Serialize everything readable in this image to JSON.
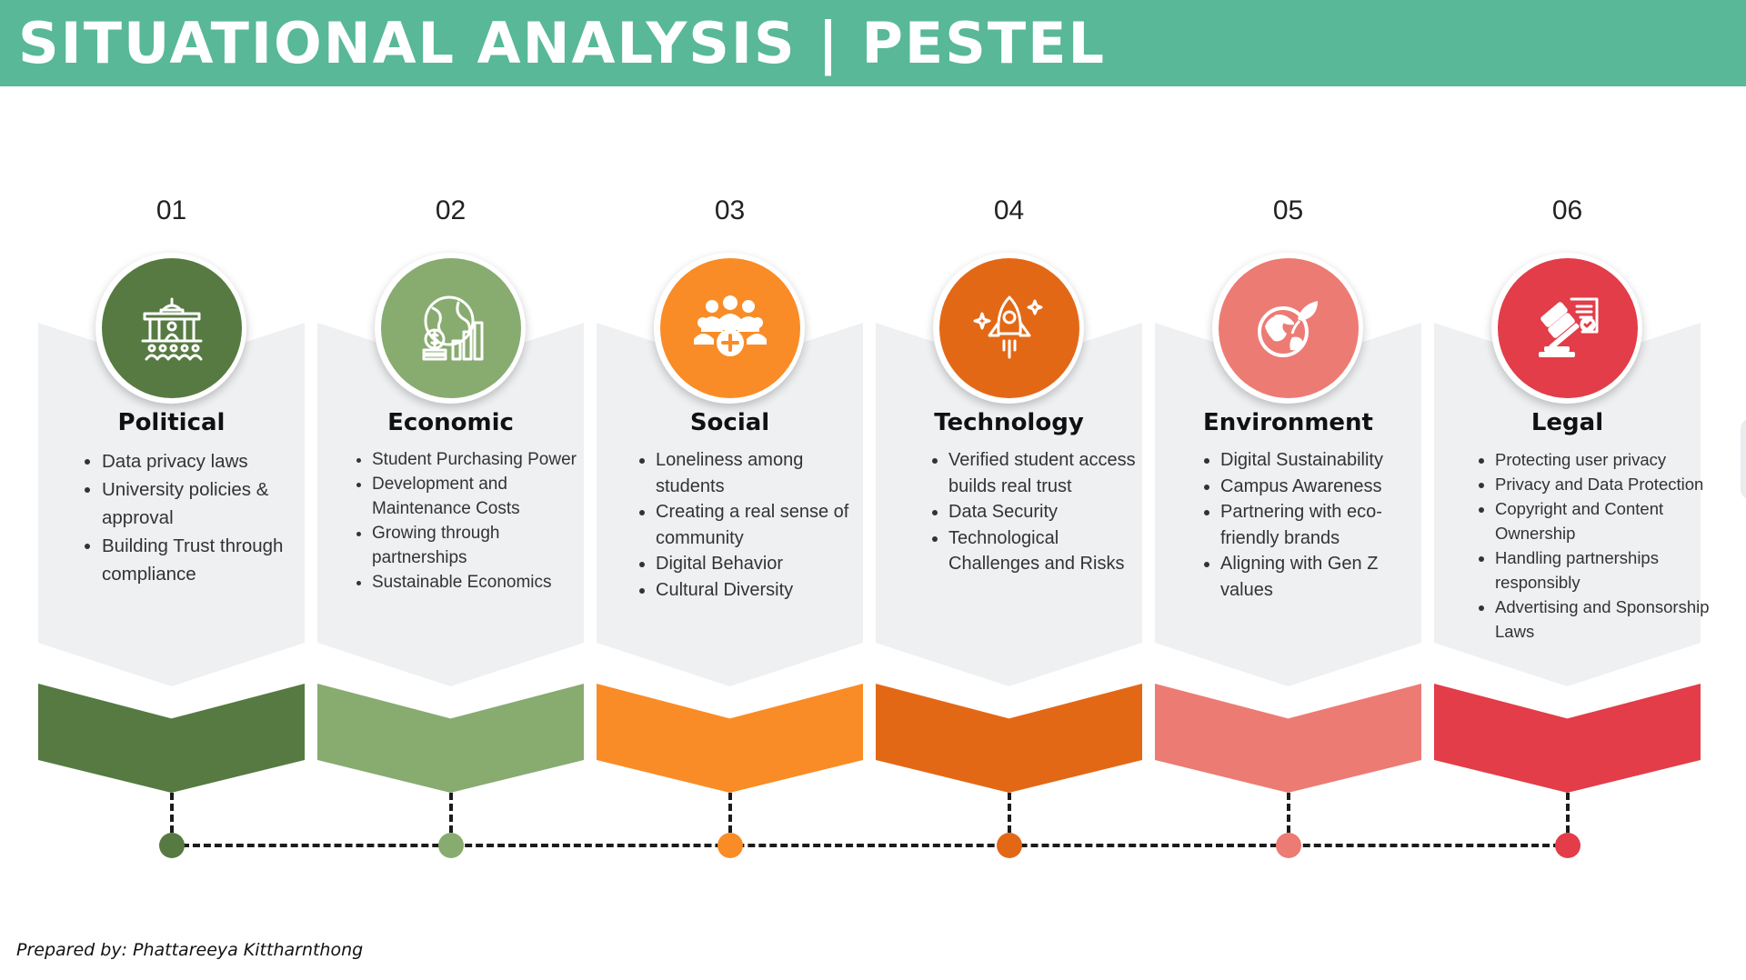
{
  "header": {
    "title": "SITUATIONAL ANALYSIS | PESTEL"
  },
  "footer": {
    "text": "Prepared by: Phattareeya Kittharnthong"
  },
  "items": [
    {
      "number": "01",
      "title": "Political",
      "color": "#567a41",
      "icon": "government-building-icon",
      "bullets": [
        "Data privacy laws",
        "University policies & approval",
        "Building Trust through compliance"
      ]
    },
    {
      "number": "02",
      "title": "Economic",
      "color": "#88ab70",
      "icon": "globe-money-chart-icon",
      "bullets": [
        "Student Purchasing Power",
        "Development and Maintenance Costs",
        "Growing through partnerships",
        "Sustainable Economics"
      ]
    },
    {
      "number": "03",
      "title": "Social",
      "color": "#f98c26",
      "icon": "community-group-icon",
      "bullets": [
        "Loneliness among students",
        "Creating a real sense of community",
        "Digital Behavior",
        "Cultural Diversity"
      ]
    },
    {
      "number": "04",
      "title": "Technology",
      "color": "#e36816",
      "icon": "rocket-icon",
      "bullets": [
        "Verified student access builds real trust",
        "Data Security",
        "Technological Challenges and Risks"
      ]
    },
    {
      "number": "05",
      "title": "Environment",
      "color": "#ec7b74",
      "icon": "eco-globe-icon",
      "bullets": [
        "Digital Sustainability",
        "Campus Awareness",
        "Partnering with eco-friendly brands",
        "Aligning with Gen Z values"
      ]
    },
    {
      "number": "06",
      "title": "Legal",
      "color": "#e23d48",
      "icon": "gavel-document-icon",
      "bullets": [
        "Protecting user privacy",
        "Privacy and Data Protection",
        "Copyright and Content Ownership",
        "Handling partnerships responsibly",
        "Advertising and Sponsorship Laws"
      ]
    }
  ]
}
